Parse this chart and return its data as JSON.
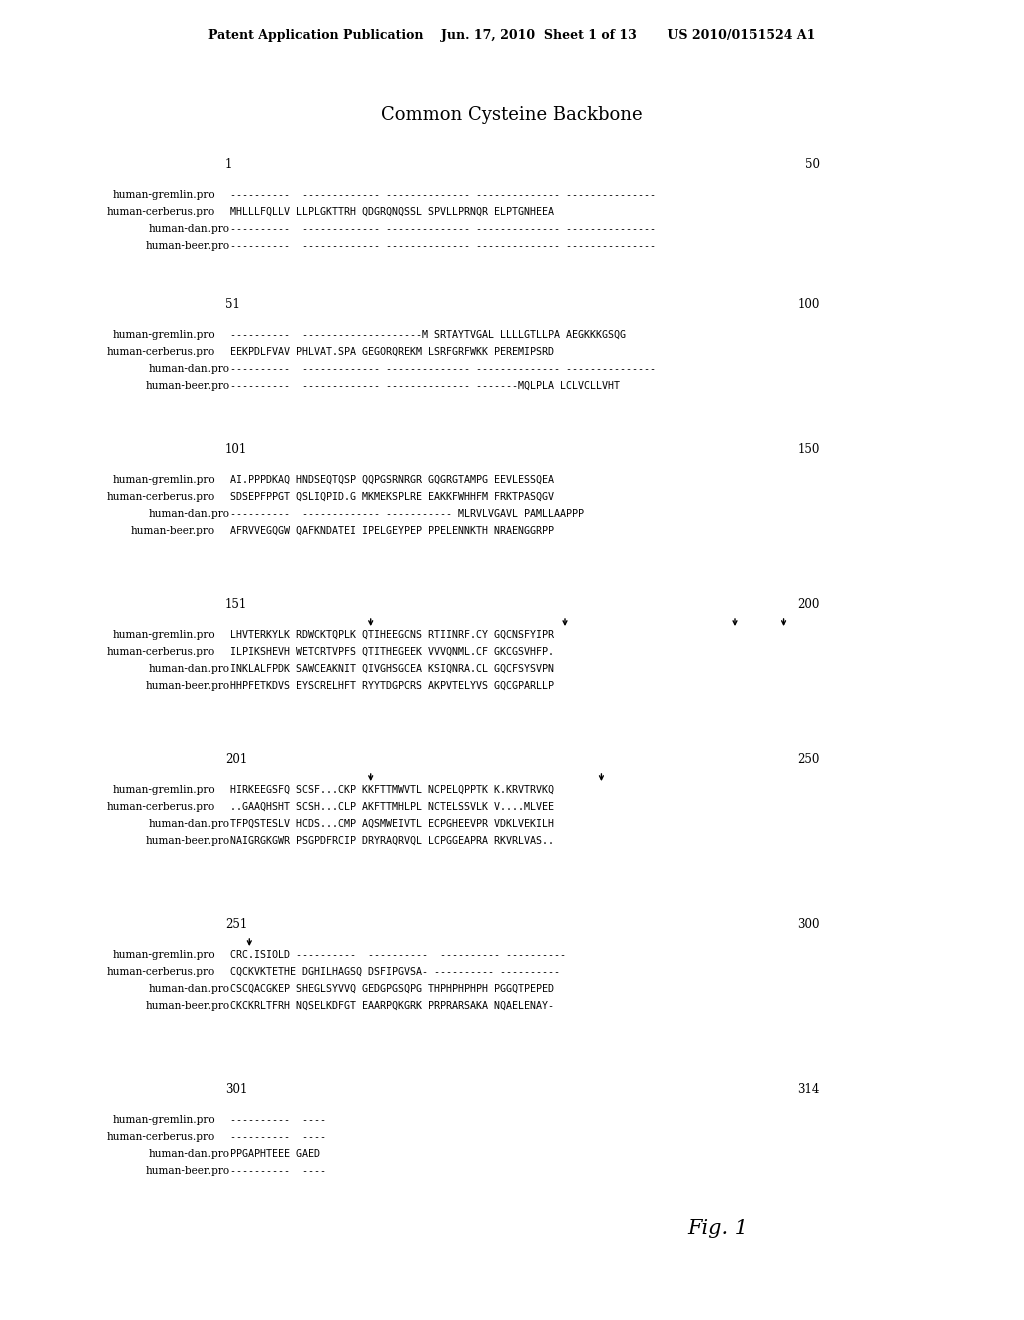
{
  "header": "Patent Application Publication    Jun. 17, 2010  Sheet 1 of 13       US 2010/0151524 A1",
  "title": "Common Cysteine Backbone",
  "fig_label": "Fig. 1",
  "bg_color": "#ffffff",
  "blocks": [
    {
      "left_num": "1",
      "right_num": "50",
      "arrows": [],
      "rows": [
        {
          "name": "human-gremlin.pro",
          "indent": 0,
          "seq": "----------  ------------- -------------- -------------- ---------------"
        },
        {
          "name": "human-cerberus.pro",
          "indent": 0,
          "seq": "MHLLLFQLLV LLPLGKTTRH QDGRQNQSSL SPVLLPRNQR ELPTGNHEEA"
        },
        {
          "name": "human-dan.pro",
          "indent": 1,
          "seq": "----------  ------------- -------------- -------------- ---------------"
        },
        {
          "name": "human-beer.pro",
          "indent": 1,
          "seq": "----------  ------------- -------------- -------------- ---------------"
        }
      ]
    },
    {
      "left_num": "51",
      "right_num": "100",
      "arrows": [],
      "rows": [
        {
          "name": "human-gremlin.pro",
          "indent": 0,
          "seq": "----------  --------------------M SRTAYTVGAL LLLLGTLLPA AEGKKKGSQG"
        },
        {
          "name": "human-cerberus.pro",
          "indent": 0,
          "seq": "EEKPDLFVAV PHLVAT.SPA GEGORQREKM LSRFGRFWKK PEREMIPSRD"
        },
        {
          "name": "human-dan.pro",
          "indent": 1,
          "seq": "----------  ------------- -------------- -------------- ---------------"
        },
        {
          "name": "human-beer.pro",
          "indent": 1,
          "seq": "----------  ------------- -------------- -------MQLPLA LCLVCLLVHT"
        }
      ]
    },
    {
      "left_num": "101",
      "right_num": "150",
      "arrows": [],
      "rows": [
        {
          "name": "human-gremlin.pro",
          "indent": 0,
          "seq": "AI.PPPDKAQ HNDSEQTQSP QQPGSRNRGR GQGRGTAMPG EEVLESSQEA"
        },
        {
          "name": "human-cerberus.pro",
          "indent": 0,
          "seq": "SDSEPFPPGT QSLIQPID.G MKMEKSPLRE EAKKFWHHFM FRKTPASQGV"
        },
        {
          "name": "human-dan.pro",
          "indent": 1,
          "seq": "----------  ------------- ----------- MLRVLVGAVL PAMLLAAPPP"
        },
        {
          "name": "human-beer.pro",
          "indent": 0,
          "seq": "AFRVVEGQGW QAFKNDATEI IPELGEYPEP PPELENNKTH NRAENGGRPP"
        }
      ]
    },
    {
      "left_num": "151",
      "right_num": "200",
      "arrows": [
        163,
        179,
        193,
        197
      ],
      "rows": [
        {
          "name": "human-gremlin.pro",
          "indent": 0,
          "seq": "LHVTERKYLK RDWCKTQPLK QTIHEEGCNS RTIINRF.CY GQCNSFYIPR"
        },
        {
          "name": "human-cerberus.pro",
          "indent": 0,
          "seq": "ILPIKSHEVH WETCRTVPFS QTITHEGEEK VVVQNML.CF GKCGSVHFP."
        },
        {
          "name": "human-dan.pro",
          "indent": 1,
          "seq": "INKLALFPDK SAWCEAKNIT QIVGHSGCEA KSIQNRA.CL GQCFSYSVPN"
        },
        {
          "name": "human-beer.pro",
          "indent": 1,
          "seq": "HHPFETKDVS EYSCRELHFT RYYTDGPCRS AKPVTELYVS GQCGPARLLP"
        }
      ]
    },
    {
      "left_num": "201",
      "right_num": "250",
      "arrows": [
        213,
        232
      ],
      "rows": [
        {
          "name": "human-gremlin.pro",
          "indent": 0,
          "seq": "HIRKEEGSFQ SCSF...CKP KKFTTMWVTL NCPELQPPTK K.KRVTRVKQ"
        },
        {
          "name": "human-cerberus.pro",
          "indent": 0,
          "seq": "..GAAQHSHT SCSH...CLP AKFTTMHLPL NCTELSSVLK V....MLVEE"
        },
        {
          "name": "human-dan.pro",
          "indent": 1,
          "seq": "TFPQSTESLV HCDS...CMP AQSMWEIVTL ECPGHEEVPR VDKLVEKILH"
        },
        {
          "name": "human-beer.pro",
          "indent": 1,
          "seq": "NAIGRGKGWR PSGPDFRCIP DRYRAQRVQL LCPGGEAPRA RKVRLVAS.."
        }
      ]
    },
    {
      "left_num": "251",
      "right_num": "300",
      "arrows": [
        253
      ],
      "rows": [
        {
          "name": "human-gremlin.pro",
          "indent": 0,
          "seq": "CRC.ISIOLD ----------  ----------  ---------- ----------"
        },
        {
          "name": "human-cerberus.pro",
          "indent": 0,
          "seq": "CQCKVKTETHE DGHILHAGSQ DSFIPGVSA- ---------- ----------"
        },
        {
          "name": "human-dan.pro",
          "indent": 1,
          "seq": "CSCQACGKEP SHEGLSYVVQ GEDGPGSQPG THPHPHPHPH PGGQTPEPED"
        },
        {
          "name": "human-beer.pro",
          "indent": 1,
          "seq": "CKCKRLTFRH NQSELKDFGT EAARPQKGRK PRPRARSAKA NQAELENAY-"
        }
      ]
    },
    {
      "left_num": "301",
      "right_num": "314",
      "arrows": [],
      "rows": [
        {
          "name": "human-gremlin.pro",
          "indent": 0,
          "seq": "----------  ----"
        },
        {
          "name": "human-cerberus.pro",
          "indent": 0,
          "seq": "----------  ----"
        },
        {
          "name": "human-dan.pro",
          "indent": 1,
          "seq": "PPGAPHTEEE GAED"
        },
        {
          "name": "human-beer.pro",
          "indent": 1,
          "seq": "----------  ----"
        }
      ]
    }
  ]
}
